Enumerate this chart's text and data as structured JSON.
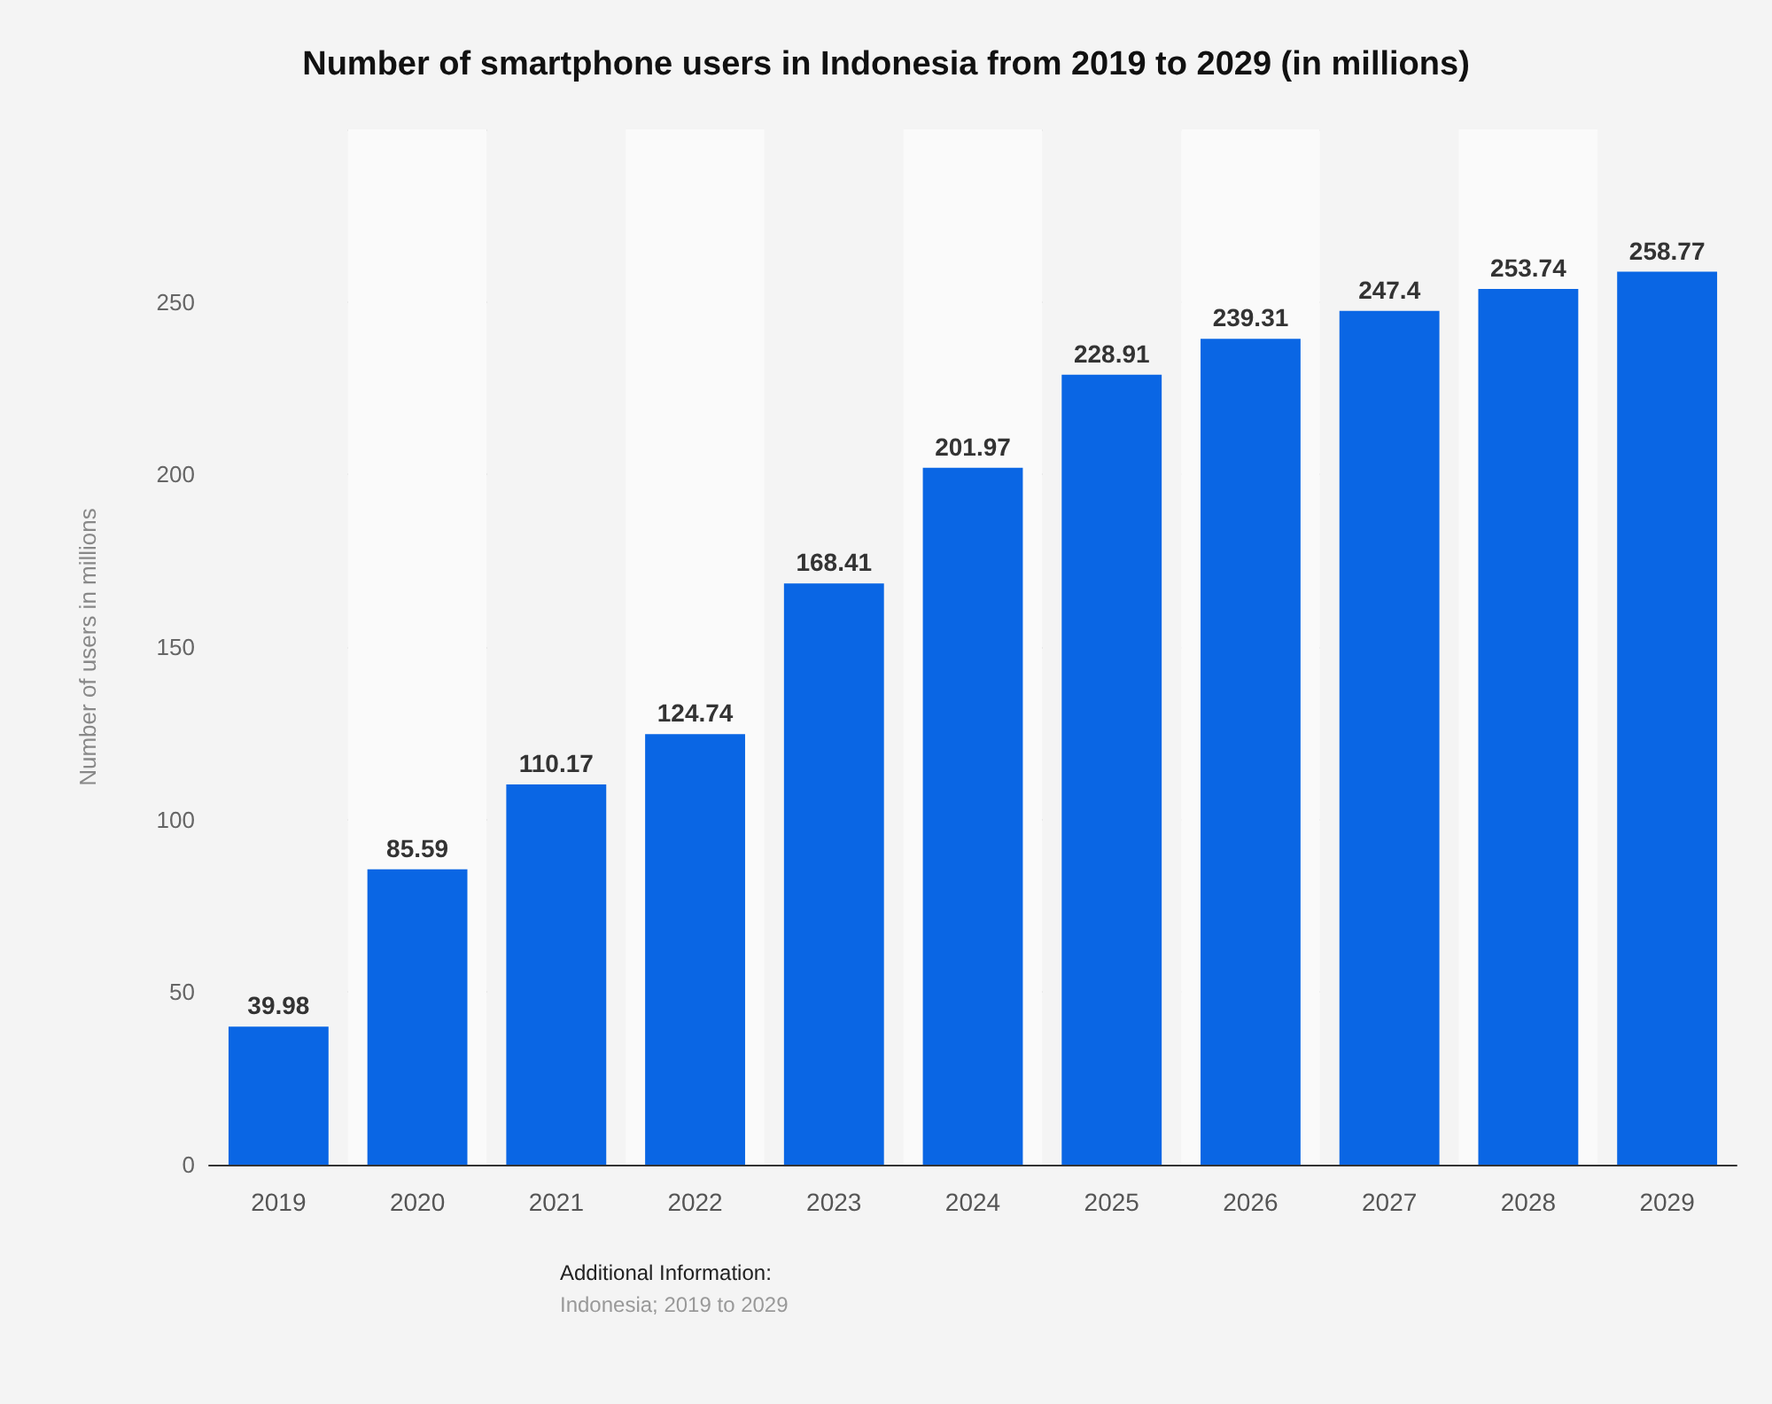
{
  "chart_data": {
    "type": "bar",
    "title": "Number of smartphone users in Indonesia from 2019 to 2029 (in millions)",
    "ylabel": "Number of users in millions",
    "categories": [
      "2019",
      "2020",
      "2021",
      "2022",
      "2023",
      "2024",
      "2025",
      "2026",
      "2027",
      "2028",
      "2029"
    ],
    "values": [
      39.98,
      85.59,
      110.17,
      124.74,
      168.41,
      201.97,
      228.91,
      239.31,
      247.4,
      253.74,
      258.77
    ],
    "color": "#0a66e4",
    "ylim": [
      0,
      300
    ],
    "yticks": [
      0,
      50,
      100,
      150,
      200,
      250,
      {
        "value": 300,
        "label": null
      }
    ],
    "grid": "y",
    "data_labels": true,
    "annotations": [
      "Additional Information:",
      "Indonesia; 2019 to 2029"
    ]
  }
}
